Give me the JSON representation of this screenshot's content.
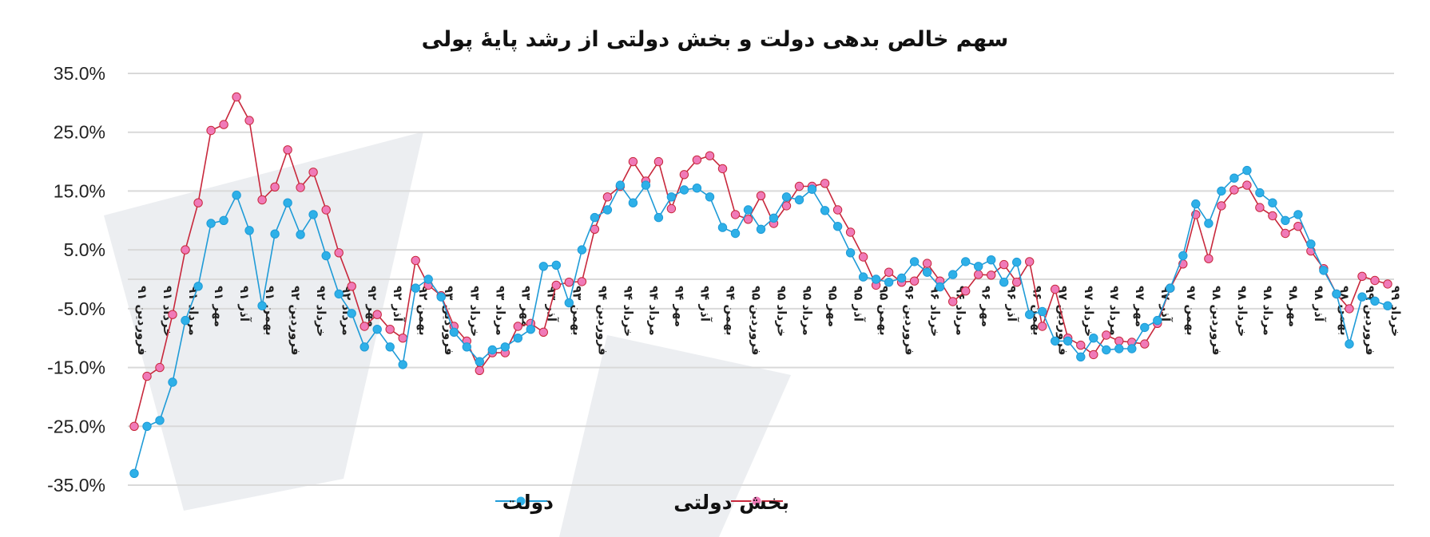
{
  "chart_data": {
    "type": "line",
    "title": "سهم خالص بدهی دولت و بخش دولتی از رشد پایهٔ پولی",
    "xlabel": "",
    "ylabel": "",
    "ylim": [
      -35,
      35
    ],
    "y_ticks": [
      "35.0%",
      "25.0%",
      "15.0%",
      "5.0%",
      "-5.0%",
      "-15.0%",
      "-25.0%",
      "-35.0%"
    ],
    "y_tick_values": [
      35,
      25,
      15,
      5,
      -5,
      -15,
      -25,
      -35
    ],
    "grid": true,
    "legend_position": "bottom",
    "x_tick_labels": [
      "فروردین ۹۱",
      "خرداد ۹۱",
      "مرداد ۹۱",
      "مهر ۹۱",
      "آذر ۹۱",
      "بهمن ۹۱",
      "فروردین ۹۲",
      "خرداد ۹۲",
      "مرداد ۹۲",
      "مهر ۹۲",
      "آذر ۹۲",
      "بهمن ۹۲",
      "فروردین ۹۳",
      "خرداد ۹۳",
      "مرداد ۹۳",
      "مهر ۹۳",
      "آذر ۹۳",
      "بهمن ۹۳",
      "فروردین ۹۴",
      "خرداد ۹۴",
      "مرداد ۹۴",
      "مهر ۹۴",
      "آذر ۹۴",
      "بهمن ۹۴",
      "فروردین ۹۵",
      "خرداد ۹۵",
      "مرداد ۹۵",
      "مهر ۹۵",
      "آذر ۹۵",
      "بهمن ۹۵",
      "فروردین ۹۶",
      "خرداد ۹۶",
      "مرداد ۹۶",
      "مهر ۹۶",
      "آذر ۹۶",
      "بهمن ۹۶",
      "فروردین ۹۷",
      "خرداد ۹۷",
      "مرداد ۹۷",
      "مهر ۹۷",
      "آذر ۹۷",
      "بهمن ۹۷",
      "فروردین ۹۸",
      "خرداد ۹۸",
      "مرداد ۹۸",
      "مهر ۹۸",
      "آذر ۹۸",
      "بهمن ۹۸",
      "فروردین ۹۹",
      "خرداد ۹۹"
    ],
    "series": [
      {
        "name": "دولت",
        "color": "#1f9bd7",
        "values": [
          -33,
          -25,
          -24,
          -17.5,
          -7,
          -1.2,
          9.5,
          10,
          14.3,
          8.3,
          -4.5,
          7.7,
          13,
          7.6,
          11,
          4,
          -2.5,
          -5.8,
          -11.5,
          -8.5,
          -11.5,
          -14.5,
          -1.5,
          0,
          -3,
          -9,
          -11.5,
          -14,
          -12,
          -11.5,
          -10,
          -8.5,
          2.2,
          2.4,
          -4,
          5,
          10.5,
          11.8,
          16,
          13,
          16,
          10.5,
          14,
          15.2,
          15.5,
          14,
          8.8,
          7.8,
          11.8,
          8.5,
          10.4,
          14,
          13.5,
          15.3,
          11.7,
          9,
          4.5,
          0.4,
          0,
          -0.5,
          0.2,
          3,
          1.2,
          -1.3,
          0.8,
          3,
          2.2,
          3.3,
          -0.5,
          2.9,
          -6,
          -5.5,
          -10.5,
          -10.5,
          -13.2,
          -10,
          -12,
          -11.8,
          -11.8,
          -8.2,
          -7,
          -1.5,
          4,
          12.8,
          9.5,
          15,
          17.2,
          18.5,
          14.7,
          13,
          10,
          11,
          6,
          1.5,
          -2.5,
          -11,
          -3,
          -3.7,
          -4.5
        ]
      },
      {
        "name": "بخش دولتی",
        "color": "#c8283c",
        "values": [
          -25,
          -16.5,
          -15,
          -6,
          5,
          13,
          25.3,
          26.3,
          31,
          27,
          13.5,
          15.7,
          22,
          15.6,
          18.2,
          11.8,
          4.5,
          -1.2,
          -8,
          -6,
          -8.5,
          -10,
          3.2,
          -1,
          -2.8,
          -8,
          -10.5,
          -15.5,
          -12.5,
          -12.5,
          -8,
          -7.5,
          -9,
          -1,
          -0.5,
          -0.4,
          8.5,
          14,
          15.8,
          20,
          16.7,
          20,
          12,
          17.8,
          20.3,
          21,
          18.8,
          11,
          10.2,
          14.2,
          9.5,
          12.5,
          15.8,
          15.8,
          16.3,
          11.8,
          8,
          3.8,
          -1,
          1.2,
          -0.5,
          -0.3,
          2.7,
          -0.3,
          -3.8,
          -2,
          0.8,
          0.7,
          2.5,
          -0.5,
          3,
          -8,
          -1.7,
          -10,
          -11.2,
          -12.8,
          -9.5,
          -10.5,
          -10.7,
          -11,
          -7.5,
          -1.5,
          2.6,
          11,
          3.5,
          12.5,
          15.2,
          16,
          12.2,
          10.8,
          7.8,
          9,
          4.8,
          1.8,
          -2.5,
          -5,
          0.5,
          -0.2,
          -0.8
        ]
      }
    ]
  }
}
